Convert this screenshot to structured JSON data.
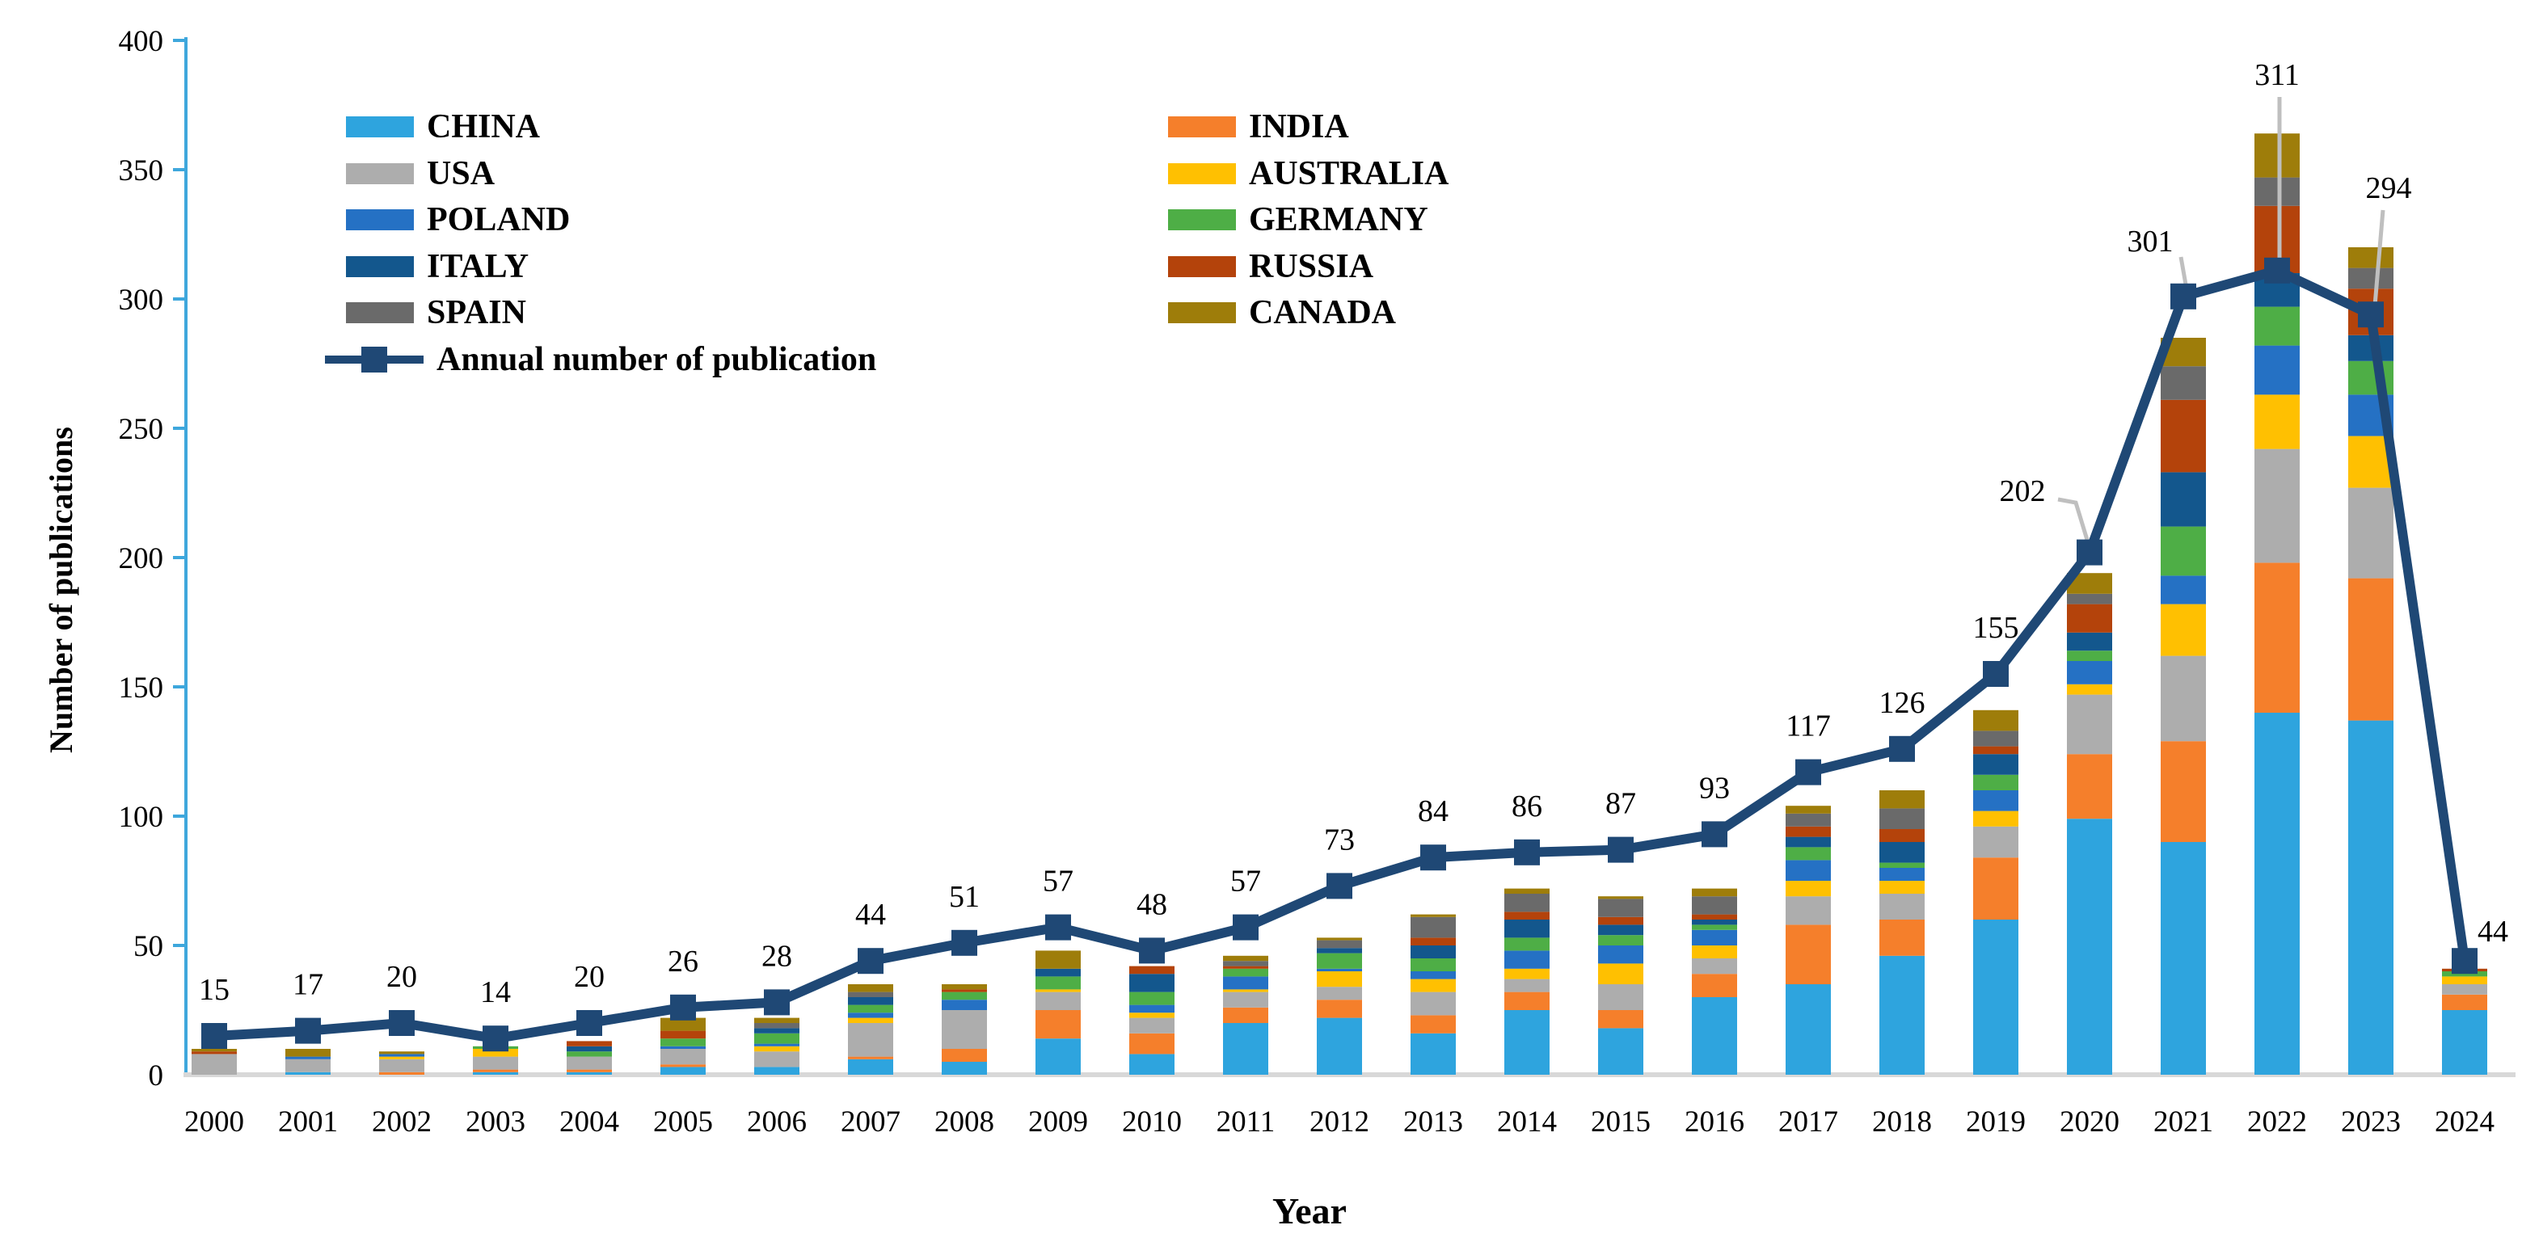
{
  "chart_data": {
    "type": "combo-stacked-bar-line",
    "title": "",
    "xlabel": "Year",
    "ylabel": "Number of publications",
    "ylim": [
      0,
      400
    ],
    "ytick_interval": 50,
    "grid": false,
    "axis_color": "#3EA7DC",
    "baseline_color": "#D8D8D8",
    "callout_leader_color": "#BFBFBF",
    "categories": [
      "2000",
      "2001",
      "2002",
      "2003",
      "2004",
      "2005",
      "2006",
      "2007",
      "2008",
      "2009",
      "2010",
      "2011",
      "2012",
      "2013",
      "2014",
      "2015",
      "2016",
      "2017",
      "2018",
      "2019",
      "2020",
      "2021",
      "2022",
      "2023",
      "2024"
    ],
    "bar_series": [
      {
        "name": "CHINA",
        "color": "#2EA4DE",
        "values": [
          0,
          1,
          0,
          1,
          1,
          3,
          3,
          6,
          5,
          14,
          8,
          20,
          22,
          16,
          25,
          18,
          30,
          35,
          46,
          60,
          99,
          90,
          140,
          137,
          25
        ]
      },
      {
        "name": "INDIA",
        "color": "#F57F2B",
        "values": [
          0,
          0,
          1,
          1,
          1,
          1,
          0,
          1,
          5,
          11,
          8,
          6,
          7,
          7,
          7,
          7,
          9,
          23,
          14,
          24,
          25,
          39,
          58,
          55,
          6
        ]
      },
      {
        "name": "USA",
        "color": "#ADADAD",
        "values": [
          8,
          5,
          5,
          5,
          5,
          6,
          6,
          13,
          15,
          7,
          6,
          6,
          5,
          9,
          5,
          10,
          6,
          11,
          10,
          12,
          23,
          33,
          44,
          35,
          4
        ]
      },
      {
        "name": "AUSTRALIA",
        "color": "#FFC001",
        "values": [
          0,
          0,
          1,
          3,
          0,
          0,
          2,
          2,
          0,
          1,
          2,
          1,
          6,
          5,
          4,
          8,
          5,
          6,
          5,
          6,
          4,
          20,
          21,
          20,
          3
        ]
      },
      {
        "name": "POLAND",
        "color": "#2571C4",
        "values": [
          0,
          1,
          1,
          0,
          0,
          1,
          1,
          2,
          4,
          0,
          3,
          5,
          1,
          3,
          7,
          7,
          6,
          8,
          5,
          8,
          9,
          11,
          19,
          16,
          0
        ]
      },
      {
        "name": "GERMANY",
        "color": "#4EAE46",
        "values": [
          0,
          0,
          0,
          1,
          2,
          3,
          4,
          3,
          3,
          5,
          5,
          3,
          6,
          5,
          5,
          4,
          2,
          5,
          2,
          6,
          4,
          19,
          15,
          13,
          2
        ]
      },
      {
        "name": "ITALY",
        "color": "#13578D",
        "values": [
          0,
          0,
          0,
          0,
          2,
          0,
          2,
          3,
          0,
          3,
          7,
          0,
          2,
          5,
          7,
          4,
          2,
          4,
          8,
          8,
          7,
          21,
          13,
          10,
          0
        ]
      },
      {
        "name": "RUSSIA",
        "color": "#B4430B",
        "values": [
          1,
          0,
          0,
          0,
          2,
          3,
          0,
          0,
          1,
          0,
          3,
          1,
          0,
          3,
          3,
          3,
          2,
          4,
          5,
          3,
          11,
          28,
          26,
          18,
          1
        ]
      },
      {
        "name": "SPAIN",
        "color": "#6A6A6A",
        "values": [
          0,
          0,
          0,
          0,
          0,
          0,
          2,
          2,
          0,
          0,
          0,
          2,
          3,
          8,
          7,
          7,
          7,
          5,
          8,
          6,
          4,
          13,
          11,
          8,
          0
        ]
      },
      {
        "name": "CANADA",
        "color": "#9E7D0A",
        "values": [
          1,
          3,
          1,
          0,
          0,
          5,
          2,
          3,
          2,
          7,
          0,
          2,
          1,
          1,
          2,
          1,
          3,
          3,
          7,
          8,
          8,
          11,
          17,
          8,
          0
        ]
      }
    ],
    "line_series": {
      "name": "Annual number of publication",
      "color": "#1F4875",
      "values": [
        15,
        17,
        20,
        14,
        20,
        26,
        28,
        44,
        51,
        57,
        48,
        57,
        73,
        84,
        86,
        87,
        93,
        117,
        126,
        155,
        202,
        301,
        311,
        294,
        44
      ]
    },
    "legend": {
      "columns": [
        [
          "CHINA",
          "USA",
          "POLAND",
          "ITALY",
          "SPAIN"
        ],
        [
          "INDIA",
          "AUSTRALIA",
          "GERMANY",
          "RUSSIA",
          "CANADA"
        ]
      ],
      "line_label": "Annual number of publication"
    }
  }
}
